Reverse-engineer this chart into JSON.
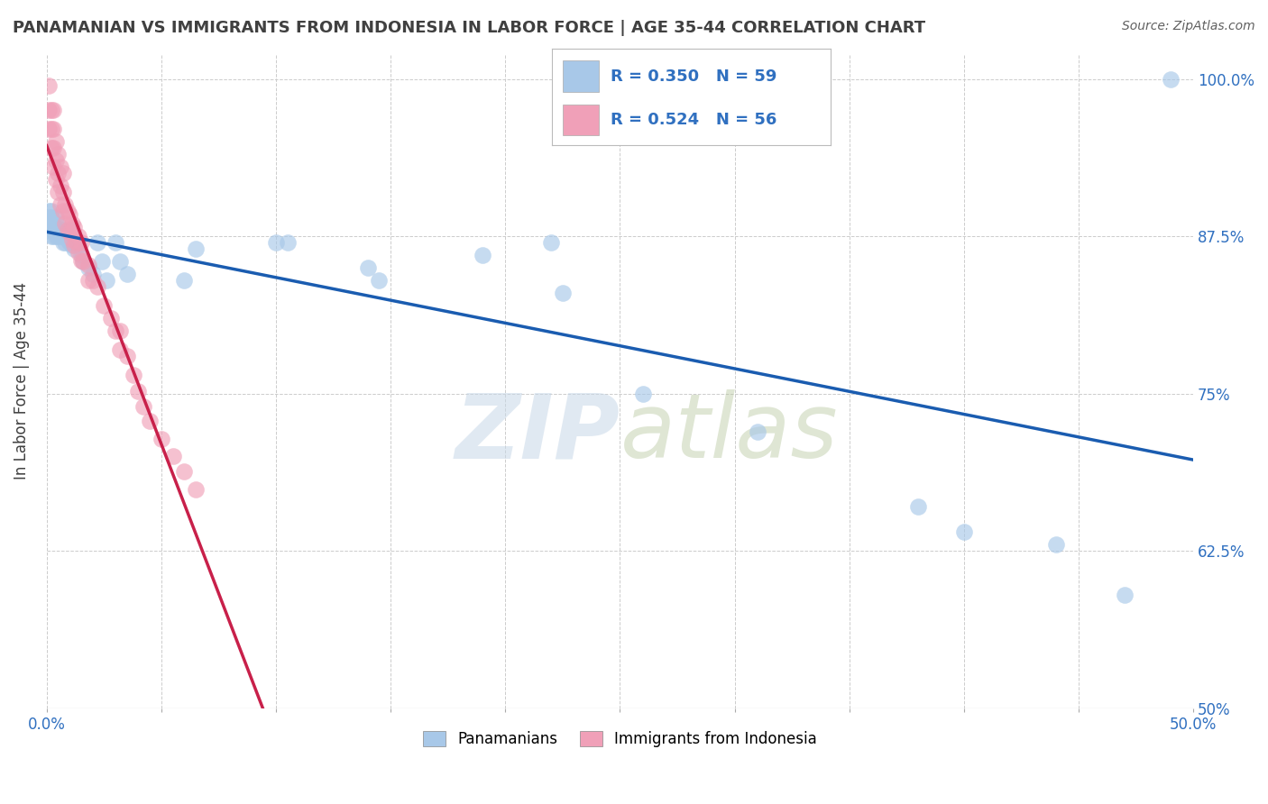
{
  "title": "PANAMANIAN VS IMMIGRANTS FROM INDONESIA IN LABOR FORCE | AGE 35-44 CORRELATION CHART",
  "source": "Source: ZipAtlas.com",
  "ylabel": "In Labor Force | Age 35-44",
  "xlim": [
    0.0,
    0.5
  ],
  "ylim": [
    0.5,
    1.02
  ],
  "yticks": [
    0.5,
    0.625,
    0.75,
    0.875,
    1.0
  ],
  "blue_R": 0.35,
  "blue_N": 59,
  "pink_R": 0.524,
  "pink_N": 56,
  "blue_color": "#a8c8e8",
  "pink_color": "#f0a0b8",
  "blue_line_color": "#1a5cb0",
  "pink_line_color": "#c8204a",
  "legend_blue_label": "Panamanians",
  "legend_pink_label": "Immigrants from Indonesia",
  "bg_color": "#ffffff",
  "title_color": "#404040",
  "tick_color": "#3070c0",
  "grid_color": "#cccccc",
  "blue_scatter_x": [
    0.001,
    0.001,
    0.001,
    0.001,
    0.002,
    0.002,
    0.002,
    0.002,
    0.002,
    0.003,
    0.003,
    0.003,
    0.004,
    0.004,
    0.004,
    0.005,
    0.005,
    0.005,
    0.006,
    0.006,
    0.007,
    0.007,
    0.007,
    0.008,
    0.008,
    0.009,
    0.01,
    0.01,
    0.011,
    0.011,
    0.012,
    0.013,
    0.014,
    0.015,
    0.016,
    0.018,
    0.02,
    0.022,
    0.024,
    0.026,
    0.03,
    0.032,
    0.035,
    0.06,
    0.065,
    0.1,
    0.105,
    0.14,
    0.145,
    0.19,
    0.22,
    0.225,
    0.26,
    0.31,
    0.38,
    0.4,
    0.44,
    0.47,
    0.49
  ],
  "blue_scatter_y": [
    0.88,
    0.885,
    0.89,
    0.895,
    0.875,
    0.88,
    0.885,
    0.89,
    0.895,
    0.875,
    0.88,
    0.885,
    0.875,
    0.88,
    0.89,
    0.875,
    0.88,
    0.885,
    0.875,
    0.88,
    0.87,
    0.875,
    0.88,
    0.87,
    0.878,
    0.872,
    0.87,
    0.88,
    0.868,
    0.875,
    0.865,
    0.87,
    0.868,
    0.86,
    0.855,
    0.85,
    0.845,
    0.87,
    0.855,
    0.84,
    0.87,
    0.855,
    0.845,
    0.84,
    0.865,
    0.87,
    0.87,
    0.85,
    0.84,
    0.86,
    0.87,
    0.83,
    0.75,
    0.72,
    0.66,
    0.64,
    0.63,
    0.59,
    1.0
  ],
  "pink_scatter_x": [
    0.001,
    0.001,
    0.001,
    0.002,
    0.002,
    0.002,
    0.003,
    0.003,
    0.003,
    0.003,
    0.004,
    0.004,
    0.004,
    0.005,
    0.005,
    0.005,
    0.006,
    0.006,
    0.006,
    0.007,
    0.007,
    0.007,
    0.008,
    0.008,
    0.009,
    0.009,
    0.01,
    0.01,
    0.011,
    0.011,
    0.012,
    0.012,
    0.013,
    0.014,
    0.014,
    0.015,
    0.015,
    0.016,
    0.018,
    0.018,
    0.02,
    0.022,
    0.025,
    0.028,
    0.03,
    0.032,
    0.032,
    0.035,
    0.038,
    0.04,
    0.042,
    0.045,
    0.05,
    0.055,
    0.06,
    0.065
  ],
  "pink_scatter_y": [
    0.96,
    0.975,
    0.995,
    0.945,
    0.96,
    0.975,
    0.93,
    0.945,
    0.96,
    0.975,
    0.92,
    0.935,
    0.95,
    0.91,
    0.925,
    0.94,
    0.9,
    0.915,
    0.93,
    0.895,
    0.91,
    0.925,
    0.885,
    0.9,
    0.88,
    0.895,
    0.878,
    0.892,
    0.872,
    0.885,
    0.868,
    0.882,
    0.87,
    0.862,
    0.875,
    0.856,
    0.87,
    0.855,
    0.84,
    0.852,
    0.84,
    0.835,
    0.82,
    0.81,
    0.8,
    0.785,
    0.8,
    0.78,
    0.765,
    0.752,
    0.74,
    0.728,
    0.714,
    0.7,
    0.688,
    0.674
  ]
}
